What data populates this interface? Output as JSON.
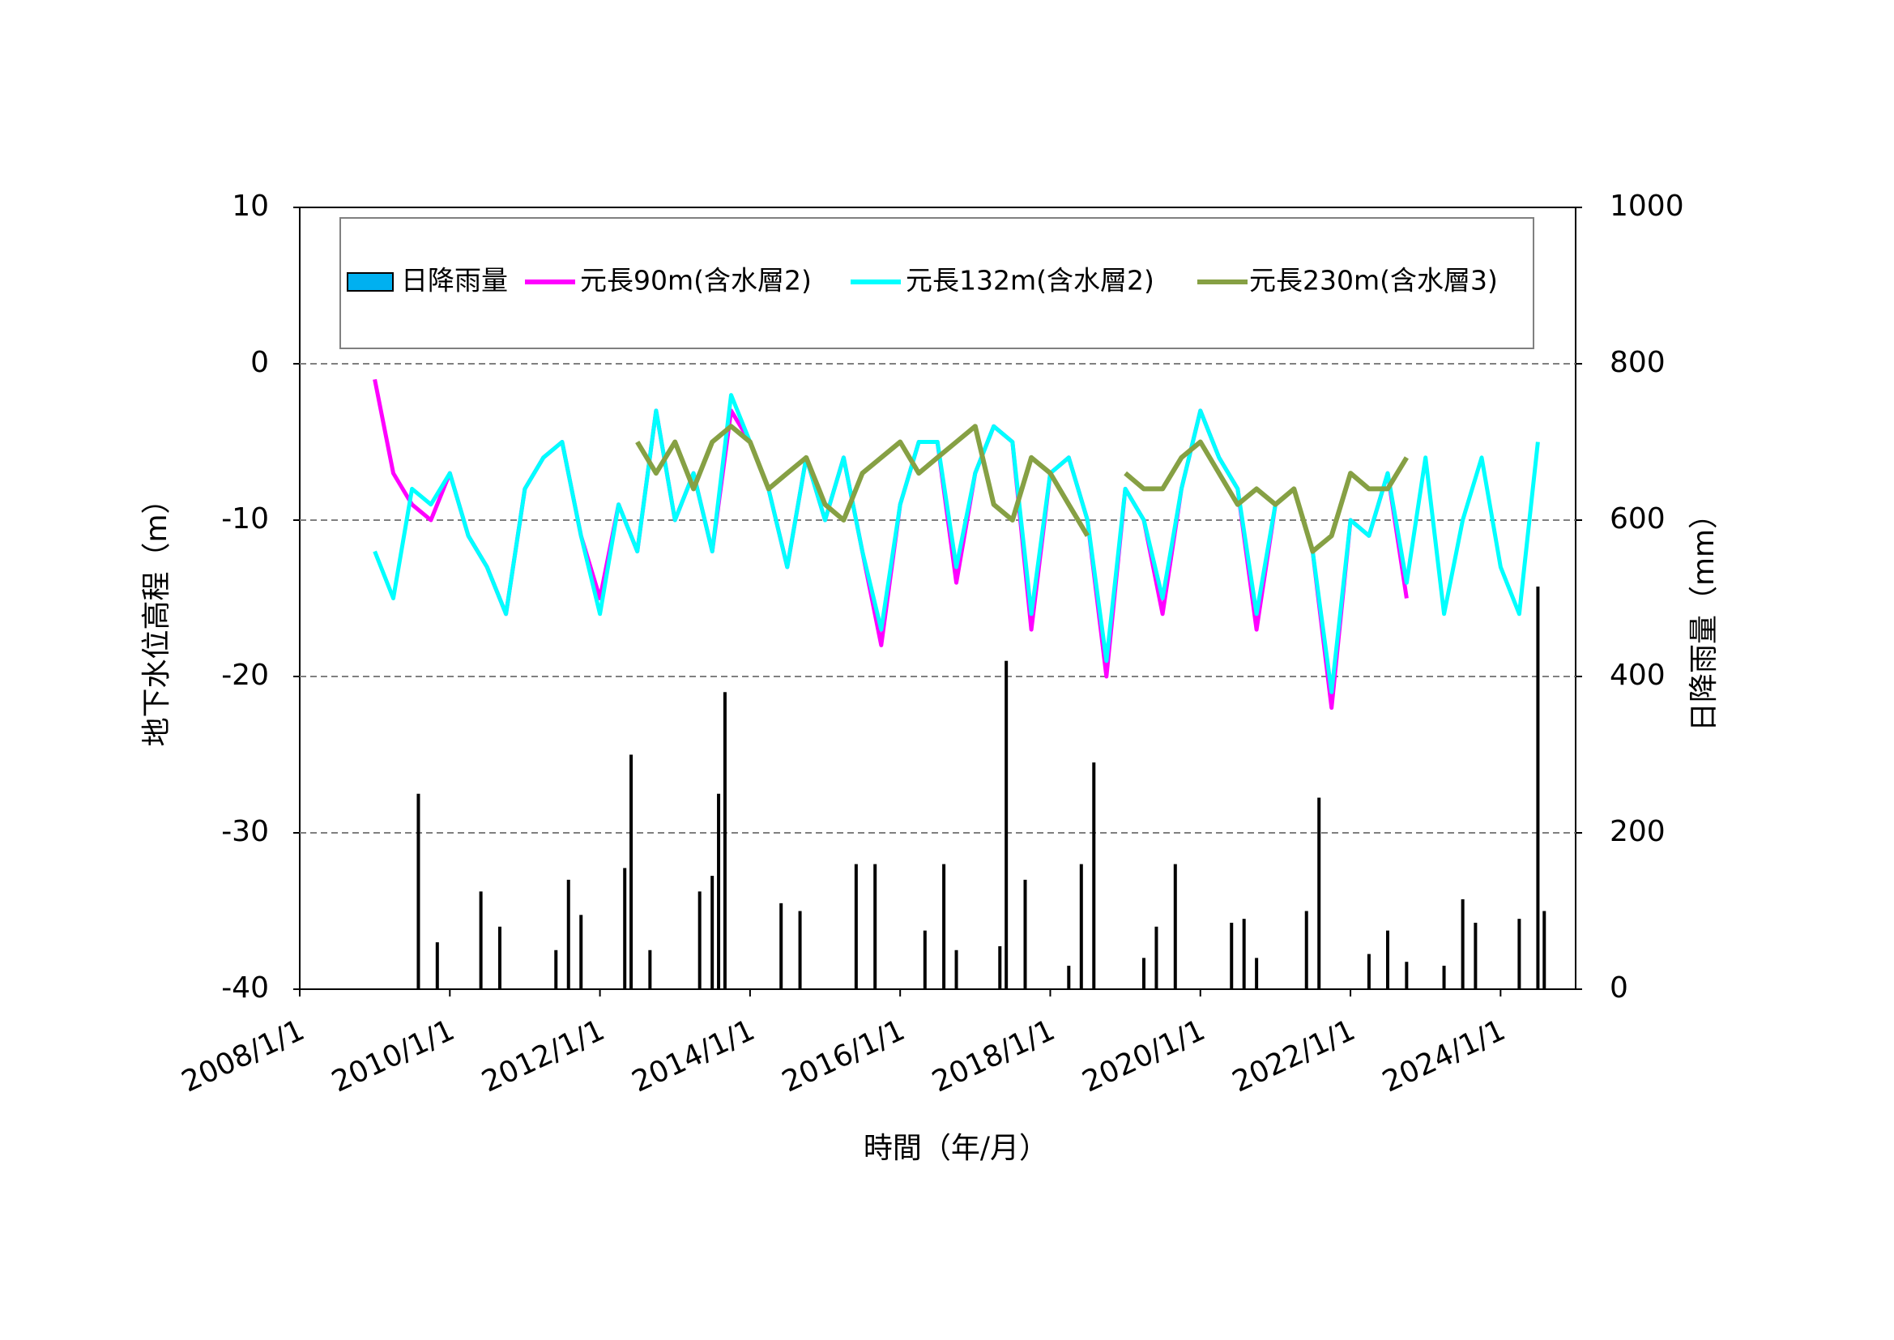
{
  "chart_data": {
    "type": "line",
    "x_label": "時間（年/月）",
    "y_label": "地下水位高程（m）",
    "y2_label": "日降雨量（mm）",
    "xlim": [
      "2008/1/1",
      "2025/1/1"
    ],
    "xticks": [
      "2008/1/1",
      "2010/1/1",
      "2012/1/1",
      "2014/1/1",
      "2016/1/1",
      "2018/1/1",
      "2020/1/1",
      "2022/1/1",
      "2024/1/1"
    ],
    "ylim": [
      -40,
      10
    ],
    "yticks": [
      -40,
      -30,
      -20,
      -10,
      0,
      10
    ],
    "y2lim": [
      0,
      1000
    ],
    "y2ticks": [
      0,
      200,
      400,
      600,
      800,
      1000
    ],
    "grid": true,
    "legend": "top",
    "series": [
      {
        "name": "日降雨量",
        "type": "bar",
        "axis": "y2",
        "color": "#00b0f0",
        "edgecolor": "#000000",
        "x": [
          "2009/8/1",
          "2009/11/1",
          "2010/6/1",
          "2010/9/1",
          "2011/6/1",
          "2011/8/1",
          "2011/10/1",
          "2012/5/1",
          "2012/6/1",
          "2012/9/1",
          "2013/5/1",
          "2013/7/1",
          "2013/8/1",
          "2013/9/1",
          "2014/6/1",
          "2014/9/1",
          "2015/6/1",
          "2015/9/1",
          "2016/5/1",
          "2016/8/1",
          "2016/10/1",
          "2017/5/1",
          "2017/6/1",
          "2017/9/1",
          "2018/4/1",
          "2018/6/1",
          "2018/8/1",
          "2019/4/1",
          "2019/6/1",
          "2019/9/1",
          "2020/6/1",
          "2020/8/1",
          "2020/10/1",
          "2021/6/1",
          "2021/8/1",
          "2022/4/1",
          "2022/7/1",
          "2022/10/1",
          "2023/4/1",
          "2023/7/1",
          "2023/9/1",
          "2024/4/1",
          "2024/7/1",
          "2024/8/1"
        ],
        "values": [
          250,
          60,
          125,
          80,
          50,
          140,
          95,
          155,
          300,
          50,
          125,
          145,
          250,
          380,
          110,
          100,
          160,
          160,
          75,
          160,
          50,
          55,
          420,
          140,
          30,
          160,
          290,
          40,
          80,
          160,
          85,
          90,
          40,
          100,
          245,
          45,
          75,
          35,
          30,
          115,
          85,
          90,
          515,
          100
        ]
      },
      {
        "name": "元長90m(含水層2)",
        "color": "#ff00ff",
        "x": [
          "2009/1/1",
          "2009/4/1",
          "2009/7/1",
          "2009/10/1",
          "2010/1/1",
          "2010/4/1",
          "2010/7/1",
          "2010/10/1",
          "2011/1/1",
          "2011/4/1",
          "2011/7/1",
          "2011/10/1",
          "2012/1/1",
          "2012/4/1",
          "2012/7/1",
          "2012/10/1",
          "2013/1/1",
          "2013/4/1",
          "2013/7/1",
          "2013/10/1",
          "2014/1/1",
          "2014/4/1",
          "2014/7/1",
          "2014/10/1",
          "2015/1/1",
          "2015/4/1",
          "2015/7/1",
          "2015/10/1",
          "2016/1/1",
          "2016/4/1",
          "2016/7/1",
          "2016/10/1",
          "2017/1/1",
          "2017/4/1",
          "2017/7/1",
          "2017/10/1",
          "2018/1/1",
          "2018/4/1",
          "2018/7/1",
          "2018/10/1",
          "2019/1/1",
          "2019/4/1",
          "2019/7/1",
          "2019/10/1",
          "2020/1/1",
          "2020/4/1",
          "2020/7/1",
          "2020/10/1",
          "2021/1/1",
          "2021/4/1",
          "2021/7/1",
          "2021/10/1",
          "2022/1/1",
          "2022/4/1",
          "2022/7/1",
          "2022/10/1"
        ],
        "values": [
          -1,
          -7,
          -9,
          -10,
          -7,
          -11,
          -13,
          -16,
          -8,
          -6,
          -5,
          -11,
          -15,
          -9,
          -12,
          -3,
          -10,
          -7,
          -12,
          -3,
          -5,
          -8,
          -13,
          -6,
          -10,
          -6,
          -12,
          -18,
          -9,
          -5,
          -5,
          -14,
          -7,
          -4,
          -5,
          -17,
          -7,
          -6,
          -10,
          -20,
          -8,
          -10,
          -16,
          -8,
          -3,
          -6,
          -8,
          -17,
          -9,
          -8,
          -12,
          -22,
          -10,
          -11,
          -7,
          -15
        ]
      },
      {
        "name": "元長132m(含水層2)",
        "color": "#00ffff",
        "x": [
          "2009/1/1",
          "2009/4/1",
          "2009/7/1",
          "2009/10/1",
          "2010/1/1",
          "2010/4/1",
          "2010/7/1",
          "2010/10/1",
          "2011/1/1",
          "2011/4/1",
          "2011/7/1",
          "2011/10/1",
          "2012/1/1",
          "2012/4/1",
          "2012/7/1",
          "2012/10/1",
          "2013/1/1",
          "2013/4/1",
          "2013/7/1",
          "2013/10/1",
          "2014/1/1",
          "2014/4/1",
          "2014/7/1",
          "2014/10/1",
          "2015/1/1",
          "2015/4/1",
          "2015/7/1",
          "2015/10/1",
          "2016/1/1",
          "2016/4/1",
          "2016/7/1",
          "2016/10/1",
          "2017/1/1",
          "2017/4/1",
          "2017/7/1",
          "2017/10/1",
          "2018/1/1",
          "2018/4/1",
          "2018/7/1",
          "2018/10/1",
          "2019/1/1",
          "2019/4/1",
          "2019/7/1",
          "2019/10/1",
          "2020/1/1",
          "2020/4/1",
          "2020/7/1",
          "2020/10/1",
          "2021/1/1",
          "2021/4/1",
          "2021/7/1",
          "2021/10/1",
          "2022/1/1",
          "2022/4/1",
          "2022/7/1",
          "2022/10/1",
          "2023/1/1",
          "2023/4/1",
          "2023/7/1",
          "2023/10/1",
          "2024/1/1",
          "2024/4/1",
          "2024/7/1"
        ],
        "values": [
          -12,
          -15,
          -8,
          -9,
          -7,
          -11,
          -13,
          -16,
          -8,
          -6,
          -5,
          -11,
          -16,
          -9,
          -12,
          -3,
          -10,
          -7,
          -12,
          -2,
          -5,
          -8,
          -13,
          -6,
          -10,
          -6,
          -12,
          -17,
          -9,
          -5,
          -5,
          -13,
          -7,
          -4,
          -5,
          -16,
          -7,
          -6,
          -10,
          -19,
          -8,
          -10,
          -15,
          -8,
          -3,
          -6,
          -8,
          -16,
          -9,
          -8,
          -12,
          -21,
          -10,
          -11,
          -7,
          -14,
          -6,
          -16,
          -10,
          -6,
          -13,
          -16,
          -5
        ]
      },
      {
        "name": "元長230m(含水層3)",
        "color": "#86a044",
        "x": [
          "2012/7/1",
          "2012/10/1",
          "2013/1/1",
          "2013/4/1",
          "2013/7/1",
          "2013/10/1",
          "2014/1/1",
          "2014/4/1",
          "2014/7/1",
          "2014/10/1",
          "2015/1/1",
          "2015/4/1",
          "2015/7/1",
          "2015/10/1",
          "2016/1/1",
          "2016/4/1",
          "2016/7/1",
          "2016/10/1",
          "2017/1/1",
          "2017/4/1",
          "2017/7/1",
          "2017/10/1",
          "2018/1/1",
          "2018/4/1",
          "2018/7/1",
          "2018/10/1",
          "2019/1/1",
          "2019/4/1",
          "2019/7/1",
          "2019/10/1",
          "2020/1/1",
          "2020/4/1",
          "2020/7/1",
          "2020/10/1",
          "2021/1/1",
          "2021/4/1",
          "2021/7/1",
          "2021/10/1",
          "2022/1/1",
          "2022/4/1",
          "2022/7/1",
          "2022/10/1"
        ],
        "values": [
          -5,
          -7,
          -5,
          -8,
          -5,
          -4,
          -5,
          -8,
          -7,
          -6,
          -9,
          -10,
          -7,
          -6,
          -5,
          -7,
          -6,
          -5,
          -4,
          -9,
          -10,
          -6,
          -7,
          -9,
          -11,
          null,
          -7,
          -8,
          -8,
          -6,
          -5,
          -7,
          -9,
          -8,
          -9,
          -8,
          -12,
          -11,
          -7,
          -8,
          -8,
          -6
        ]
      }
    ]
  }
}
